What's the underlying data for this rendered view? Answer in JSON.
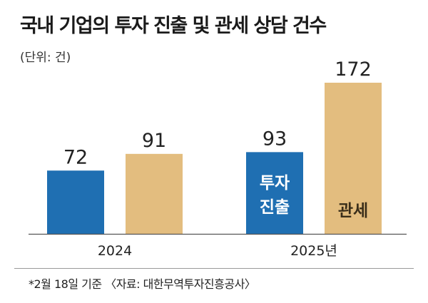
{
  "chart_data": {
    "type": "bar",
    "title": "국내 기업의 투자 진출 및 관세 상담 건수",
    "unit_label": "(단위: 건)",
    "categories": [
      "2024",
      "2025년"
    ],
    "series": [
      {
        "name": "투자 진출",
        "values": [
          72,
          93
        ],
        "color": "#1f6fb2",
        "label_color": "#ffffff"
      },
      {
        "name": "관세",
        "values": [
          91,
          172
        ],
        "color": "#e3bd7f",
        "label_color": "#3a2e1a"
      }
    ],
    "ylim": [
      0,
      172
    ],
    "grid": false,
    "footnote": "*2월 18일 기준",
    "source": "〈자료: 대한무역투자진흥공사〉"
  }
}
